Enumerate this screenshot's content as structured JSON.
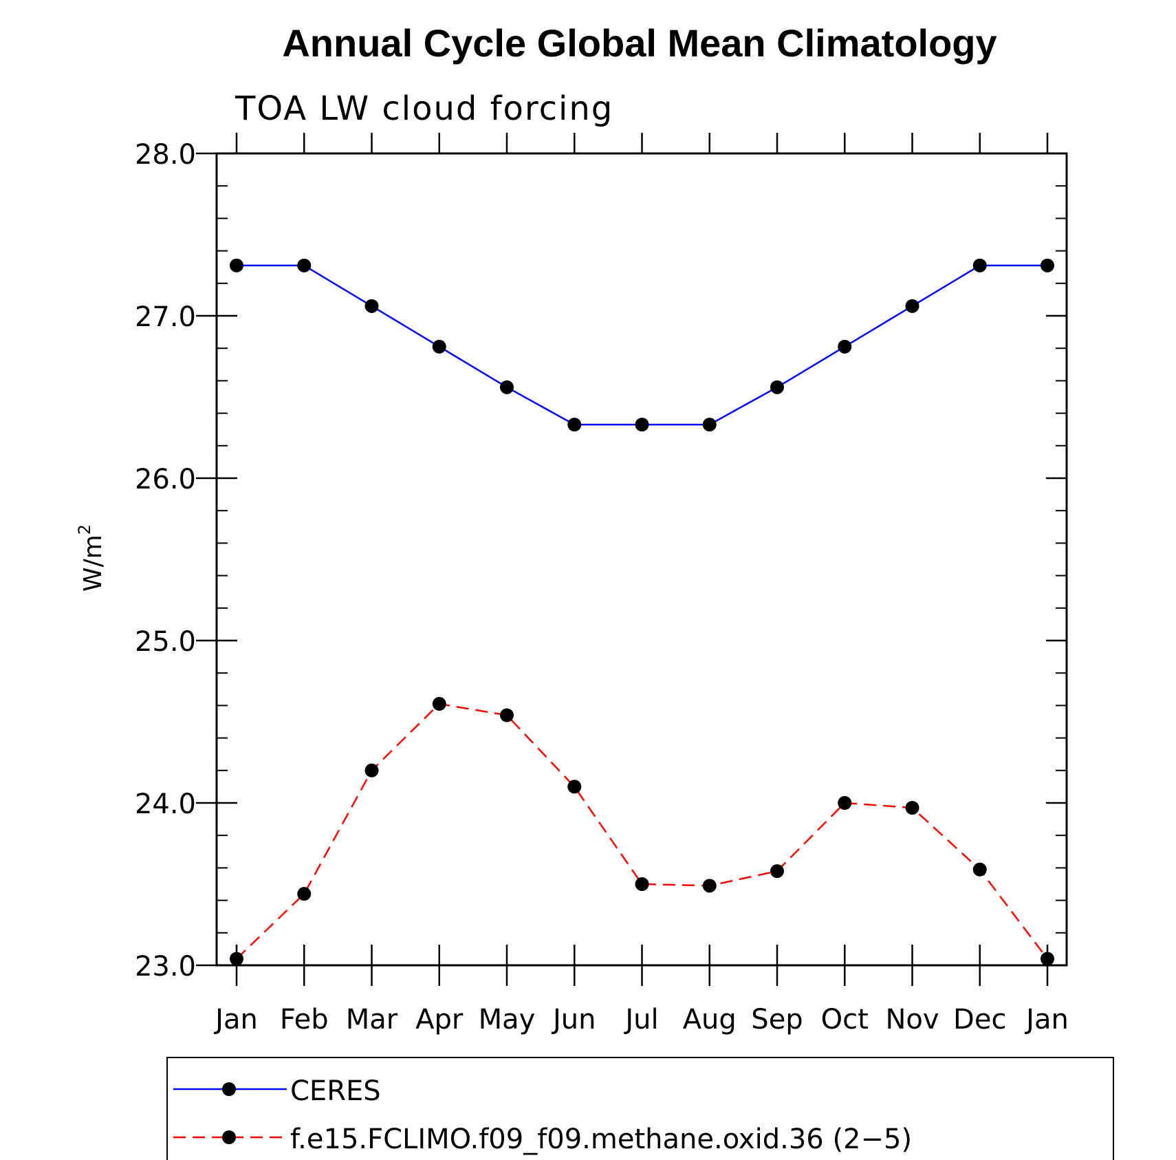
{
  "chart_data": {
    "type": "line",
    "title": "Annual Cycle Global Mean Climatology",
    "subtitle": "TOA LW cloud forcing",
    "ylabel": "W/m",
    "ylabel_sup": "2",
    "xlabel": "",
    "categories": [
      "Jan",
      "Feb",
      "Mar",
      "Apr",
      "May",
      "Jun",
      "Jul",
      "Aug",
      "Sep",
      "Oct",
      "Nov",
      "Dec",
      "Jan"
    ],
    "ylim": [
      23.0,
      28.0
    ],
    "yticks": [
      "23.0",
      "24.0",
      "25.0",
      "26.0",
      "27.0",
      "28.0"
    ],
    "grid": false,
    "legend_position": "bottom",
    "series": [
      {
        "name": "CERES",
        "color": "#0000ff",
        "style": "solid",
        "marker": "filled-circle",
        "values": [
          27.31,
          27.31,
          27.06,
          26.81,
          26.56,
          26.33,
          26.33,
          26.33,
          26.56,
          26.81,
          27.06,
          27.31,
          27.31
        ]
      },
      {
        "name": "f.e15.FCLIMO.f09_f09.methane.oxid.36 (2−5)",
        "color": "#ff0000",
        "style": "dashed",
        "marker": "filled-circle",
        "values": [
          23.04,
          23.44,
          24.2,
          24.61,
          24.54,
          24.1,
          23.5,
          23.49,
          23.58,
          24.0,
          23.97,
          23.59,
          23.04
        ]
      }
    ]
  }
}
